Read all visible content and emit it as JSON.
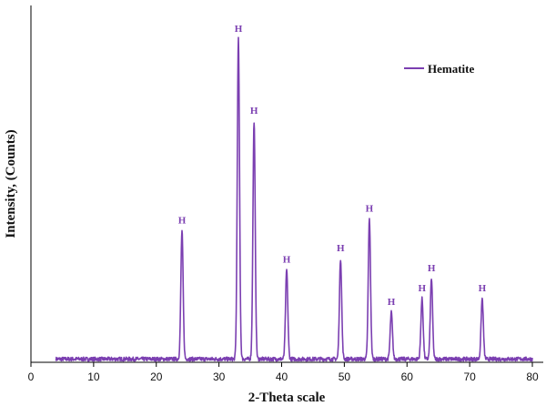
{
  "chart_data": {
    "type": "line",
    "title": "",
    "xlabel": "2-Theta scale",
    "ylabel": "Intensity, (Counts)",
    "xlim": [
      0,
      80
    ],
    "ylim": [
      0,
      100
    ],
    "xticks": [
      0,
      10,
      20,
      30,
      40,
      50,
      60,
      70,
      80
    ],
    "grid": false,
    "legend_position": "top-right",
    "series_color": "#7b3fb1",
    "series": [
      {
        "name": "Hematite",
        "x_range": [
          4,
          80
        ],
        "baseline": 1.0
      }
    ],
    "peaks": [
      {
        "x": 24.1,
        "y": 40.3,
        "label": "H"
      },
      {
        "x": 33.1,
        "y": 99.1,
        "label": "H"
      },
      {
        "x": 35.6,
        "y": 74.0,
        "label": "H"
      },
      {
        "x": 40.8,
        "y": 28.4,
        "label": "H"
      },
      {
        "x": 49.4,
        "y": 31.8,
        "label": "H"
      },
      {
        "x": 54.0,
        "y": 44.0,
        "label": "H"
      },
      {
        "x": 57.5,
        "y": 15.3,
        "label": "H"
      },
      {
        "x": 62.4,
        "y": 19.5,
        "label": "H"
      },
      {
        "x": 63.9,
        "y": 25.7,
        "label": "H"
      },
      {
        "x": 72.0,
        "y": 19.5,
        "label": "H"
      }
    ]
  }
}
